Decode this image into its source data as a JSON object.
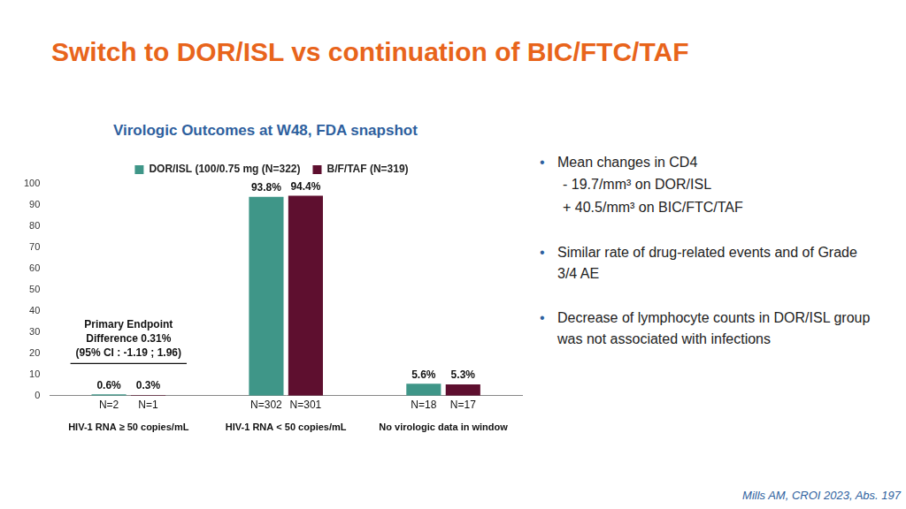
{
  "slide_title": "Switch to DOR/ISL vs continuation of BIC/FTC/TAF",
  "chart_data": {
    "type": "bar",
    "title": "Virologic Outcomes at W48, FDA snapshot",
    "categories": [
      "HIV-1 RNA ≥ 50 copies/mL",
      "HIV-1 RNA < 50 copies/mL",
      "No virologic data in window"
    ],
    "series": [
      {
        "name": "DOR/ISL (100/0.75 mg (N=322)",
        "color": "#3f9688",
        "values": [
          0.6,
          93.8,
          5.6
        ],
        "value_labels": [
          "0.6%",
          "93.8%",
          "5.6%"
        ],
        "n_labels": [
          "N=2",
          "N=302",
          "N=18"
        ]
      },
      {
        "name": "B/F/TAF (N=319)",
        "color": "#5e0f2f",
        "values": [
          0.3,
          94.4,
          5.3
        ],
        "value_labels": [
          "0.3%",
          "94.4%",
          "5.3%"
        ],
        "n_labels": [
          "N=1",
          "N=301",
          "N=17"
        ]
      }
    ],
    "ylim": [
      0,
      100
    ],
    "yticks": [
      0,
      10,
      20,
      30,
      40,
      50,
      60,
      70,
      80,
      90,
      100
    ],
    "grid": false,
    "legend": "top",
    "data_labels": true,
    "annotation": [
      "Primary Endpoint",
      "Difference 0.31%",
      "(95% CI : -1.19 ; 1.96)"
    ]
  },
  "bullets": [
    {
      "text": "Mean changes in CD4",
      "sub": [
        "- 19.7/mm³ on DOR/ISL",
        "+ 40.5/mm³ on BIC/FTC/TAF"
      ]
    },
    {
      "text": "Similar rate of drug-related events and of Grade 3/4 AE"
    },
    {
      "text": "Decrease of lymphocyte counts in DOR/ISL group was not associated with infections"
    }
  ],
  "citation": "Mills AM, CROI 2023, Abs. 197"
}
